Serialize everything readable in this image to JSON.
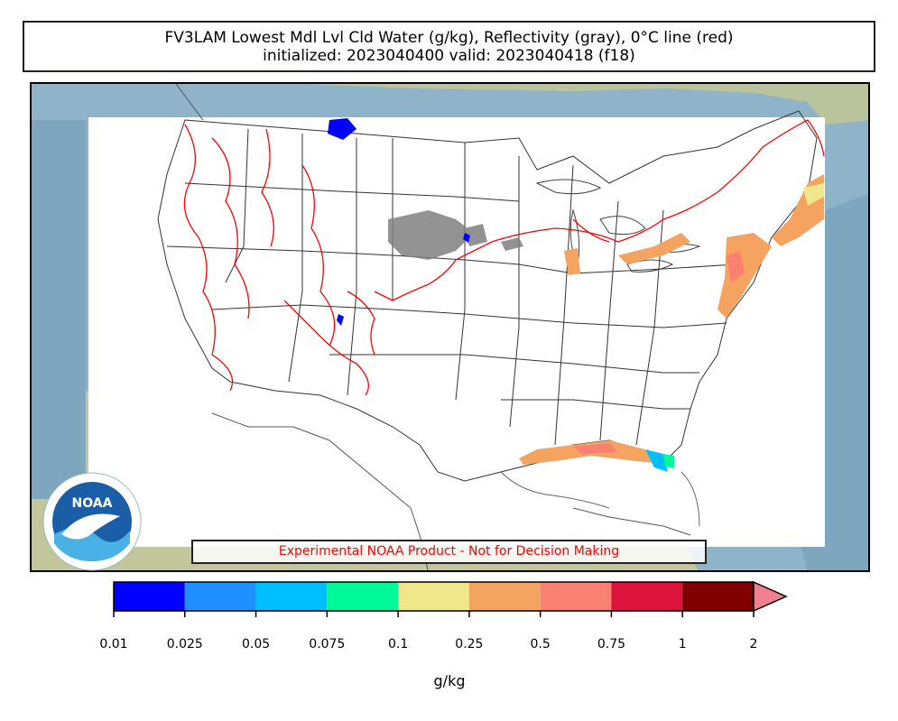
{
  "title": {
    "line1": "FV3LAM Lowest Mdl Lvl Cld Water (g/kg), Reflectivity (gray), 0°C line (red)",
    "line2": "initialized: 2023040400 valid: 2023040418 (f18)"
  },
  "disclaimer": "Experimental NOAA Product - Not for Decision Making",
  "logo": {
    "icon": "noaa-logo-icon",
    "text": "NOAA"
  },
  "colorbar": {
    "unit": "g/kg",
    "ticks": [
      "0.01",
      "0.025",
      "0.05",
      "0.075",
      "0.1",
      "0.25",
      "0.5",
      "0.75",
      "1",
      "2"
    ],
    "colors": [
      "#0000ff",
      "#1e90ff",
      "#00bfff",
      "#00fa9a",
      "#f0e68c",
      "#f4a460",
      "#fa8072",
      "#dc143c",
      "#800000"
    ],
    "extend_color": "#f08090"
  },
  "colors": {
    "freezing_line": "#ff0000",
    "reflectivity": "#808080",
    "ocean": "#7ea7bf",
    "land": "#b8c4a0",
    "domain": "#ffffff"
  }
}
